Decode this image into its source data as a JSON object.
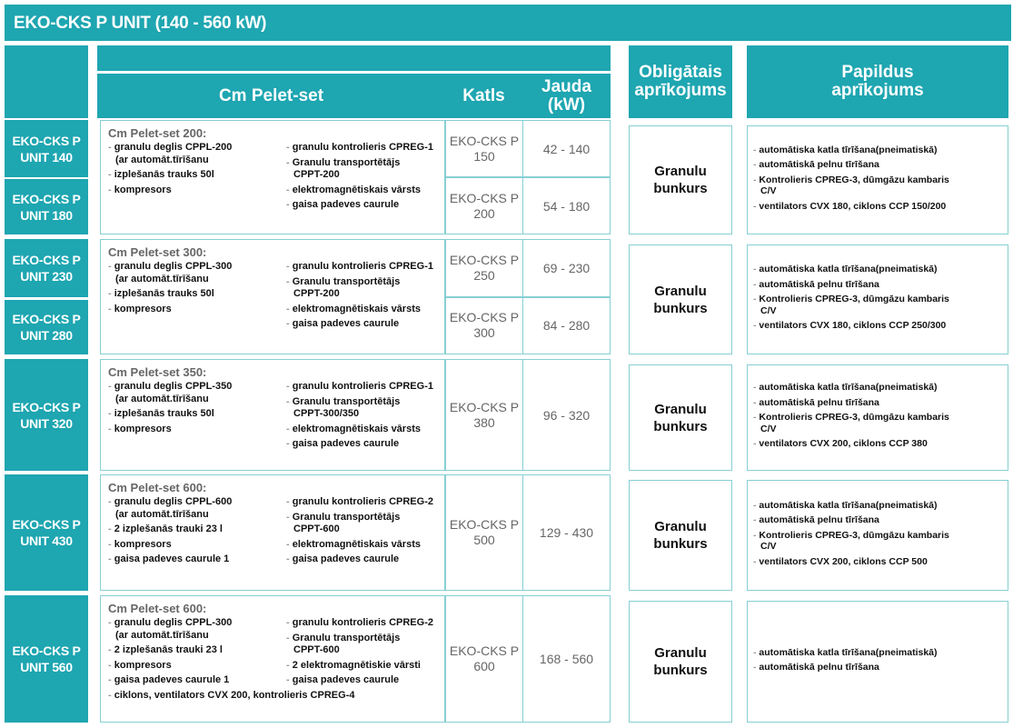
{
  "title": "EKO-CKS P UNIT (140 - 560 kW)",
  "colors": {
    "accent": "#1ea6b1",
    "border": "#86cfd3"
  },
  "headers": {
    "cm_pelet_set": "Cm Pelet-set",
    "katls": "Katls",
    "jauda": "Jauda\n(kW)",
    "obligatais": "Obligātais\naprīkojums",
    "papildus": "Papildus\naprīkojums"
  },
  "groups": [
    {
      "units": [
        "EKO-CKS P\nUNIT  140",
        "EKO-CKS P\nUNIT  180"
      ],
      "set_title": "Cm Pelet-set 200:",
      "left_items": [
        "granulu deglis CPPL-200\n(ar automāt.tīrīšanu",
        "izplešanās trauks 50l",
        "kompresors"
      ],
      "right_items": [
        "granulu kontrolieris CPREG-1",
        "Granulu transportētājs\nCPPT-200",
        "elektromagnētiskais vārsts",
        "gaisa padeves caurule"
      ],
      "extra_item": "",
      "boilers": [
        {
          "katls": "EKO-CKS P\n150",
          "jauda": "42 - 140"
        },
        {
          "katls": "EKO-CKS P\n200",
          "jauda": "54 - 180"
        }
      ],
      "mandatory": "Granulu\nbunkurs",
      "optional": [
        "automātiska katla tīrīšana(pneimatiskā)",
        "automātiskā pelnu tīrīšana",
        "Kontrolieris CPREG-3, dūmgāzu kambaris\nC/V",
        "ventilators CVX 180, ciklons CCP 150/200"
      ]
    },
    {
      "units": [
        "EKO-CKS P\nUNIT  230",
        "EKO-CKS P\nUNIT  280"
      ],
      "set_title": "Cm Pelet-set 300:",
      "left_items": [
        "granulu deglis CPPL-300\n(ar automāt.tīrīšanu",
        "izplešanās trauks 50l",
        "kompresors"
      ],
      "right_items": [
        "granulu kontrolieris CPREG-1",
        "Granulu transportētājs\nCPPT-200",
        "elektromagnētiskais vārsts",
        "gaisa padeves caurule"
      ],
      "extra_item": "",
      "boilers": [
        {
          "katls": "EKO-CKS P\n250",
          "jauda": "69 - 230"
        },
        {
          "katls": "EKO-CKS P\n300",
          "jauda": "84 - 280"
        }
      ],
      "mandatory": "Granulu\nbunkurs",
      "optional": [
        "automātiska katla tīrīšana(pneimatiskā)",
        "automātiskā pelnu tīrīšana",
        "Kontrolieris CPREG-3, dūmgāzu kambaris\nC/V",
        "ventilators CVX 180, ciklons CCP 250/300"
      ]
    },
    {
      "units": [
        "EKO-CKS P\nUNIT  320"
      ],
      "set_title": "Cm Pelet-set 350:",
      "left_items": [
        "granulu deglis CPPL-350\n(ar automāt.tīrīšanu",
        "izplešanās trauks 50l",
        "kompresors"
      ],
      "right_items": [
        "granulu kontrolieris CPREG-1",
        "Granulu transportētājs\nCPPT-300/350",
        "elektromagnētiskais vārsts",
        "gaisa padeves caurule"
      ],
      "extra_item": "",
      "boilers": [
        {
          "katls": "EKO-CKS P\n380",
          "jauda": "96 - 320"
        }
      ],
      "mandatory": "Granulu\nbunkurs",
      "optional": [
        "automātiska katla tīrīšana(pneimatiskā)",
        "automātiskā pelnu tīrīšana",
        "Kontrolieris CPREG-3, dūmgāzu kambaris\nC/V",
        "ventilators CVX 200, ciklons CCP 380"
      ]
    },
    {
      "units": [
        "EKO-CKS P\nUNIT  430"
      ],
      "set_title": "Cm Pelet-set 600:",
      "left_items": [
        "granulu deglis CPPL-600\n(ar automāt.tīrīšanu",
        "2 izplešanās trauki 23 l",
        "kompresors",
        "gaisa padeves caurule 1"
      ],
      "right_items": [
        "granulu kontrolieris CPREG-2",
        "Granulu transportētājs\nCPPT-600",
        "elektromagnētiskais vārsts",
        "gaisa padeves caurule"
      ],
      "extra_item": "",
      "boilers": [
        {
          "katls": "EKO-CKS P\n500",
          "jauda": "129 - 430"
        }
      ],
      "mandatory": "Granulu\nbunkurs",
      "optional": [
        "automātiska katla tīrīšana(pneimatiskā)",
        "automātiskā pelnu tīrīšana",
        "Kontrolieris CPREG-3, dūmgāzu kambaris\nC/V",
        "ventilators CVX 200, ciklons CCP 500"
      ]
    },
    {
      "units": [
        "EKO-CKS P\nUNIT  560"
      ],
      "set_title": "Cm Pelet-set 600:",
      "left_items": [
        "granulu deglis CPPL-300\n(ar automāt.tīrīšanu",
        "2 izplešanās trauki 23 l",
        "kompresors",
        "gaisa padeves caurule 1"
      ],
      "right_items": [
        "granulu kontrolieris CPREG-2",
        "Granulu transportētājs\nCPPT-600",
        "2 elektromagnētiskie vārsti",
        "gaisa padeves caurule"
      ],
      "extra_item": "ciklons, ventilators CVX 200, kontrolieris CPREG-4",
      "boilers": [
        {
          "katls": "EKO-CKS P\n600",
          "jauda": "168 - 560"
        }
      ],
      "mandatory": "Granulu\nbunkurs",
      "optional": [
        "automātiska katla tīrīšana(pneimatiskā)",
        "automātiskā pelnu tīrīšana"
      ]
    }
  ]
}
